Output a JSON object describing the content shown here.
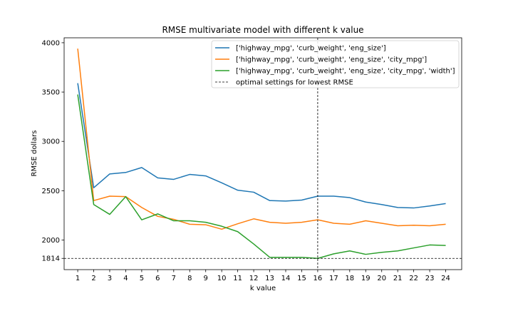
{
  "chart_data": {
    "type": "line",
    "title": "RMSE multivariate model with different k value",
    "xlabel": "k value",
    "ylabel": "RMSE dollars",
    "x": [
      1,
      2,
      3,
      4,
      5,
      6,
      7,
      8,
      9,
      10,
      11,
      12,
      13,
      14,
      15,
      16,
      17,
      18,
      19,
      20,
      21,
      22,
      23,
      24
    ],
    "xlim": [
      0.15,
      25.0
    ],
    "ylim": [
      1700,
      4050
    ],
    "yticks": [
      1814,
      2000,
      2500,
      3000,
      3500,
      4000
    ],
    "series": [
      {
        "name": "['highway_mpg', 'curb_weight', 'eng_size']",
        "color": "#1f77b4",
        "values": [
          3590,
          2530,
          2670,
          2685,
          2735,
          2630,
          2615,
          2665,
          2650,
          2580,
          2505,
          2485,
          2400,
          2395,
          2405,
          2445,
          2445,
          2430,
          2385,
          2360,
          2330,
          2325,
          2345,
          2370
        ]
      },
      {
        "name": "['highway_mpg', 'curb_weight', 'eng_size', 'city_mpg']",
        "color": "#ff7f0e",
        "values": [
          3940,
          2400,
          2445,
          2440,
          2330,
          2240,
          2210,
          2160,
          2155,
          2110,
          2165,
          2215,
          2180,
          2170,
          2180,
          2205,
          2170,
          2160,
          2195,
          2170,
          2145,
          2150,
          2145,
          2160
        ]
      },
      {
        "name": "['highway_mpg', 'curb_weight', 'eng_size', 'city_mpg', 'width']",
        "color": "#2ca02c",
        "values": [
          3475,
          2360,
          2260,
          2440,
          2205,
          2265,
          2195,
          2195,
          2180,
          2140,
          2085,
          1960,
          1825,
          1825,
          1825,
          1814,
          1860,
          1890,
          1855,
          1875,
          1890,
          1920,
          1950,
          1945
        ]
      }
    ],
    "reference_lines": [
      {
        "orientation": "vertical",
        "x": 16,
        "style": "dashed",
        "color": "#000000"
      },
      {
        "orientation": "horizontal",
        "y": 1814,
        "style": "dashed",
        "color": "#000000"
      }
    ],
    "reference_legend_label": "optimal settings for lowest RMSE",
    "legend_position": "top-right",
    "grid": false
  }
}
